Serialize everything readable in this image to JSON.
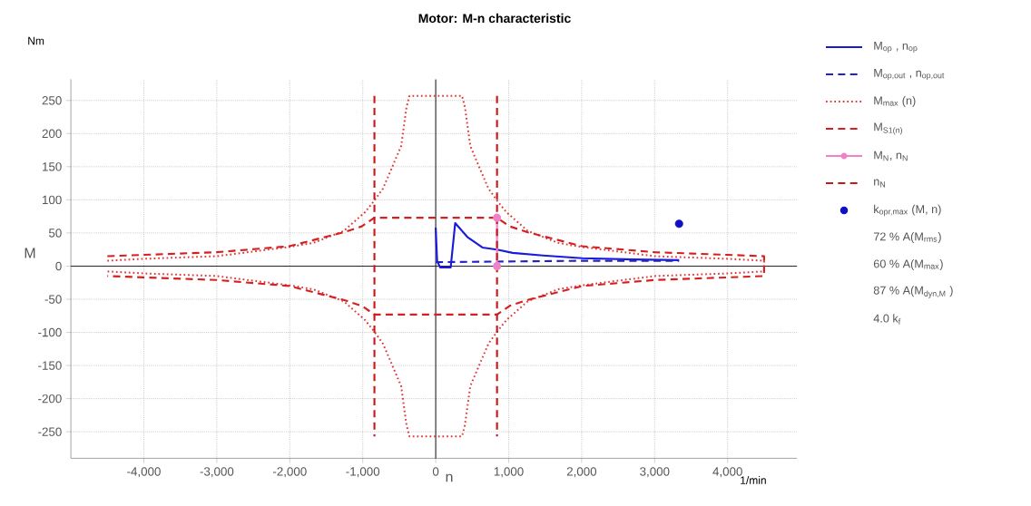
{
  "chart_data": {
    "type": "line",
    "title": "Motor: M-n characteristic",
    "xlabel": "n",
    "ylabel": "M",
    "xlim": [
      -5000,
      4950
    ],
    "ylim": [
      -290,
      282
    ],
    "xticks": [
      {
        "value": -4000,
        "label": "-4,000"
      },
      {
        "value": -3000,
        "label": "-3,000"
      },
      {
        "value": -2000,
        "label": "-2,000"
      },
      {
        "value": -1000,
        "label": "-1,000"
      },
      0,
      {
        "value": 1000,
        "label": "1,000"
      },
      {
        "value": 2000,
        "label": "2,000"
      },
      {
        "value": 3000,
        "label": "3,000"
      },
      {
        "value": 4000,
        "label": "4,000"
      }
    ],
    "yticks": [
      -250,
      -200,
      -150,
      -100,
      -50,
      0,
      50,
      100,
      150,
      200,
      250
    ],
    "grid": true,
    "legend": "right",
    "annotations": [
      "72 % A(M$_{rms}$)",
      "60 % A(M$_{max}$)",
      "87 % A(M$_{dyn,M}$ )",
      "4.0   k$_{f}$",
      "Nm",
      "1/min"
    ],
    "series": [
      {
        "name": "M$_{op}$ , n$_{op}$",
        "color": "#1a1adb",
        "line_style": "solid",
        "x": [
          0,
          19,
          60,
          205,
          267,
          433,
          640,
          840,
          1055,
          1469,
          2009,
          2713,
          3335
        ],
        "values": [
          58,
          8,
          -2,
          -2,
          65,
          44,
          28,
          25,
          20,
          16,
          12,
          10,
          9
        ]
      },
      {
        "name": "M$_{op,out}$ , n$_{op,out}$",
        "color": "#2222c8",
        "line_style": "dashed",
        "x": [
          0,
          1000,
          2000,
          3335
        ],
        "values": [
          6,
          7,
          8,
          8
        ]
      },
      {
        "name": "M$_{max}$ (n)",
        "color": "#e03838",
        "line_style": "dotted",
        "x": [
          -4500,
          -4000,
          -3000,
          -2000,
          -1677,
          -1262,
          -972,
          -840,
          -723,
          -598,
          -474,
          -400,
          -360,
          360,
          400,
          474,
          598,
          723,
          840,
          972,
          1262,
          1677,
          2000,
          3000,
          4000,
          4500,
          4500,
          4000,
          3000,
          2000,
          1677,
          1262,
          972,
          840,
          723,
          598,
          474,
          400,
          360,
          -360,
          -400,
          -474,
          -598,
          -723,
          -840,
          -972,
          -1262,
          -1677,
          -2000,
          -3000,
          -4000,
          -4500
        ],
        "values": [
          8,
          11,
          15,
          29,
          35,
          53,
          81,
          99,
          117,
          149,
          181,
          240,
          257,
          257,
          240,
          181,
          149,
          117,
          99,
          81,
          53,
          35,
          29,
          15,
          11,
          8,
          -8,
          -11,
          -15,
          -29,
          -35,
          -53,
          -81,
          -99,
          -117,
          -149,
          -181,
          -240,
          -257,
          -257,
          -240,
          -181,
          -149,
          -117,
          -99,
          -81,
          -53,
          -35,
          -29,
          -15,
          -11,
          -8
        ]
      },
      {
        "name": "M$_{S1(n)}$",
        "color": "#d42020",
        "line_style": "dashed",
        "x": [
          -4500,
          -4000,
          -3000,
          -2009,
          -1262,
          -1013,
          -840,
          840,
          1013,
          1262,
          2009,
          3000,
          4000,
          4500,
          4500,
          4000,
          3000,
          2009,
          1262,
          1013,
          840,
          -840,
          -1013,
          -1262,
          -2009,
          -3000,
          -4000,
          -4500
        ],
        "values": [
          15,
          17,
          21,
          30,
          51,
          60,
          73,
          73,
          60,
          51,
          30,
          21,
          17,
          15,
          -15,
          -17,
          -21,
          -30,
          -51,
          -60,
          -73,
          -73,
          -60,
          -51,
          -30,
          -21,
          -17,
          -15
        ]
      },
      {
        "name": "M$_{N}$, n$_{N}$",
        "color": "#f080c8",
        "line_style": "solid",
        "marker": "circle",
        "x": [
          840,
          840
        ],
        "values": [
          0,
          73
        ]
      },
      {
        "name": "n$_{N}$",
        "color": "#c81818",
        "line_style": "dashed",
        "x": [
          -840,
          -840,
          0,
          840,
          840
        ],
        "values": [
          257,
          -257,
          null,
          257,
          -257
        ]
      },
      {
        "name": "k$_{opr,max}$ (M, n)",
        "type": "scatter",
        "color": "#1010c0",
        "marker": "circle",
        "x": [
          3335
        ],
        "values": [
          64
        ]
      }
    ]
  }
}
